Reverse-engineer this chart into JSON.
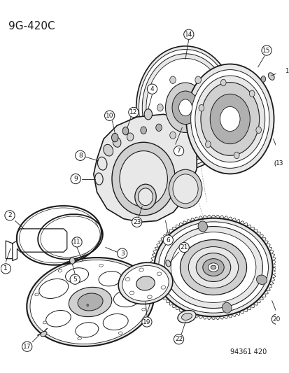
{
  "bg_color": "#ffffff",
  "title_code": "9G-420C",
  "footer_code": "94361 420",
  "line_color": "#1a1a1a",
  "fill_light": "#e8e8e8",
  "fill_mid": "#d0d0d0",
  "fill_dark": "#b0b0b0",
  "fill_white": "#ffffff",
  "title_fontsize": 11,
  "footer_fontsize": 7
}
